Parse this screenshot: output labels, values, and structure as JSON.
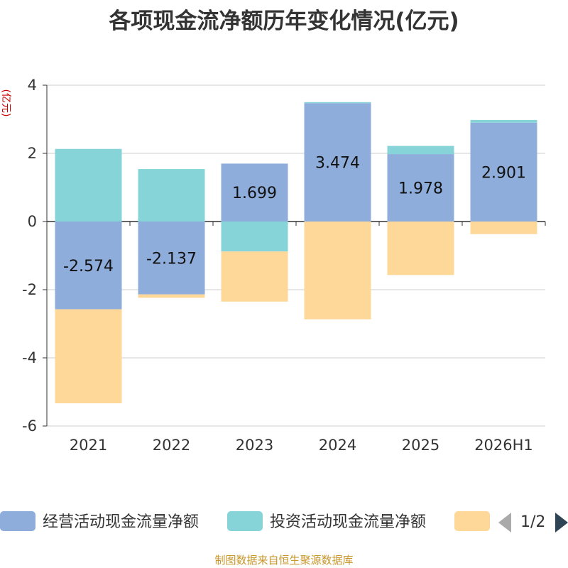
{
  "title": "各项现金流净额历年变化情况(亿元)",
  "source": "制图数据来自恒生聚源数据库",
  "pager": "1/2",
  "colors": {
    "operating": "#8eaddb",
    "investing": "#87d4d8",
    "financing": "#fed899",
    "axis_unit": "#cc0000"
  },
  "chart_data": {
    "type": "bar",
    "stacked": true,
    "title": "各项现金流净额历年变化情况(亿元)",
    "ylabel": "(亿元)",
    "ylim": [
      -6,
      4
    ],
    "yticks": [
      "4",
      "2",
      "0",
      "-2",
      "-4",
      "-6"
    ],
    "categories": [
      "2021",
      "2022",
      "2023",
      "2024",
      "2025",
      "2026H1"
    ],
    "series": [
      {
        "name": "经营活动现金流量净额",
        "values": [
          -2.574,
          -2.137,
          1.699,
          3.474,
          1.978,
          2.901
        ]
      },
      {
        "name": "投资活动现金流量净额",
        "values": [
          2.13,
          1.54,
          -0.88,
          0.03,
          0.24,
          0.08
        ]
      },
      {
        "name": "",
        "values": [
          -2.76,
          -0.1,
          -1.47,
          -2.87,
          -1.57,
          -0.37
        ]
      }
    ],
    "data_labels": [
      "-2.574",
      "-2.137",
      "1.699",
      "3.474",
      "1.978",
      "2.901"
    ],
    "grid": true,
    "legend_position": "bottom"
  }
}
